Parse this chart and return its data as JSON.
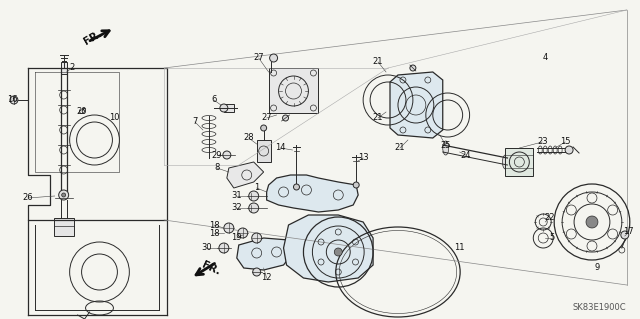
{
  "background_color": "#f5f5f0",
  "diagram_code": "SK83E1900C",
  "figsize": [
    6.4,
    3.19
  ],
  "dpi": 100,
  "line_color": "#2a2a2a",
  "label_color": "#111111",
  "fr_color": "#111111"
}
